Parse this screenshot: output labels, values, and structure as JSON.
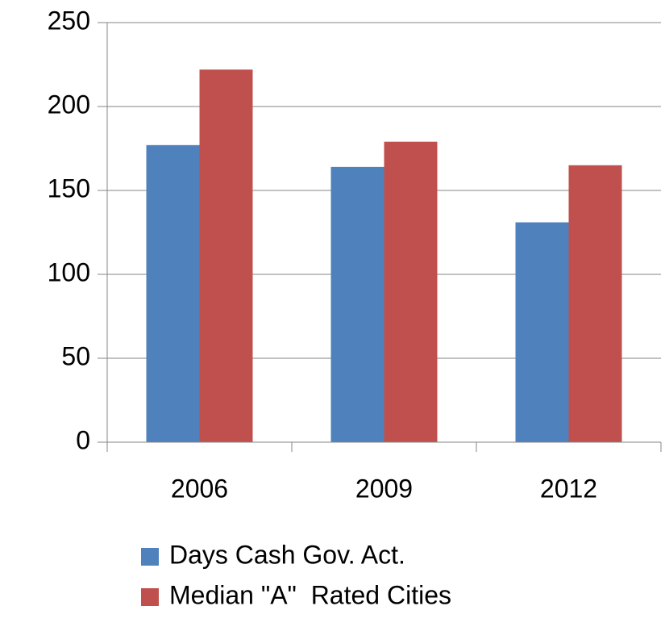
{
  "chart_data": {
    "type": "bar",
    "categories": [
      "2006",
      "2009",
      "2012"
    ],
    "series": [
      {
        "name": "Days Cash Gov. Act.",
        "color": "#4f81bd",
        "values": [
          177,
          164,
          131
        ]
      },
      {
        "name": "Median \"A\"  Rated Cities",
        "color": "#c0504d",
        "values": [
          222,
          179,
          165
        ]
      }
    ],
    "ylim": [
      0,
      250
    ],
    "yticks": [
      0,
      50,
      100,
      150,
      200,
      250
    ],
    "grid": true,
    "legend": "bottom"
  }
}
